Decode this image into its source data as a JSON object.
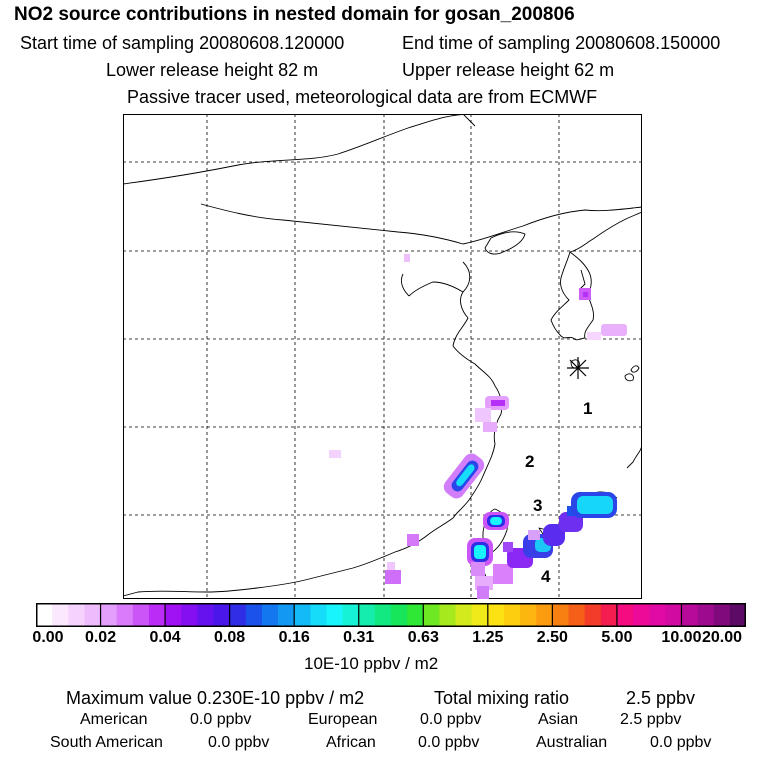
{
  "header": {
    "title": "NO2 source contributions in nested domain for gosan_200806",
    "start_time": "Start time of sampling 20080608.120000",
    "end_time": "End time of sampling 20080608.150000",
    "lower_release": "Lower release height   82 m",
    "upper_release": "Upper release height   62 m",
    "note": "Passive tracer used, meteorological data are from ECMWF"
  },
  "map": {
    "receptor_labels": [
      "1",
      "2",
      "3",
      "4"
    ]
  },
  "colorbar": {
    "tick_labels": [
      "0.00",
      "0.02",
      "0.04",
      "0.08",
      "0.16",
      "0.31",
      "0.63",
      "1.25",
      "2.50",
      "5.00",
      "10.00",
      "20.00"
    ],
    "colors": [
      "#ffffff",
      "#fbe8ff",
      "#f6d3fe",
      "#eebcfd",
      "#e39ffb",
      "#d97bfa",
      "#cc55f8",
      "#bb2df6",
      "#a012f3",
      "#8410f2",
      "#6512ef",
      "#4a16ea",
      "#2f2ee6",
      "#1a52ea",
      "#1377ef",
      "#1399f3",
      "#14baf6",
      "#16dbf9",
      "#18f6fb",
      "#15f2d5",
      "#14edab",
      "#13e981",
      "#17e55a",
      "#2fe735",
      "#6ee822",
      "#a6e91d",
      "#d3ea1d",
      "#f1ea1b",
      "#fce212",
      "#fdce10",
      "#fdb60f",
      "#fb9c10",
      "#f88012",
      "#f55f18",
      "#f33d28",
      "#f41d4f",
      "#f40c80",
      "#ee0a99",
      "#e20aa4",
      "#d10aa2",
      "#b80a9a",
      "#9e0a8e",
      "#800a7c",
      "#5d0a66"
    ],
    "unit": "10E-10 ppbv / m2"
  },
  "stats": {
    "max_value": "Maximum value  0.230E-10 ppbv / m2",
    "total_label": "Total mixing ratio",
    "total_value": "2.5 ppbv",
    "american_label": "American",
    "american_value": "0.0 ppbv",
    "european_label": "European",
    "european_value": "0.0 ppbv",
    "asian_label": "Asian",
    "asian_value": "2.5 ppbv",
    "south_american_label": "South American",
    "south_american_value": "0.0 ppbv",
    "african_label": "African",
    "african_value": "0.0 ppbv",
    "australian_label": "Australian",
    "australian_value": "0.0 ppbv"
  }
}
